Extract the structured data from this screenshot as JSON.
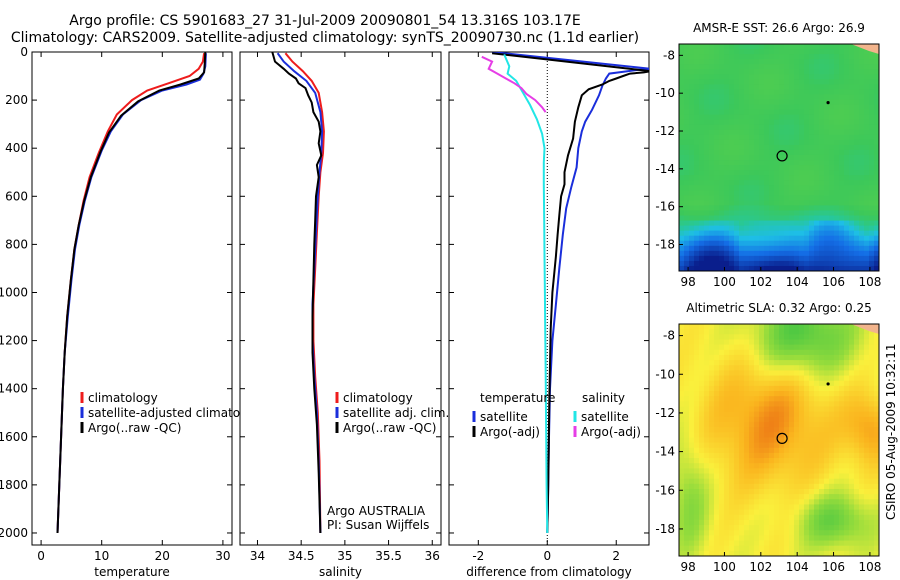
{
  "header": {
    "line1": "Argo profile: CS 5901683_27 31-Jul-2009 20090801_54 13.316S 103.17E",
    "line2": "Climatology: CARS2009. Satellite-adjusted climatology: synTS_20090730.nc (1.1d earlier)"
  },
  "stamp": "CSIRO 05-Aug-2009 10:32:11",
  "colors": {
    "climatology": "#ee1c1c",
    "satellite": "#1a2edb",
    "argo": "#000000",
    "sat_salinity": "#22e6e6",
    "argo_salinity": "#e63ee6",
    "land": "#f2b48c"
  },
  "chart_data": [
    {
      "type": "line",
      "panel": "temperature",
      "xlabel": "temperature",
      "ylabel": "",
      "xlim": [
        -1.5,
        31.5
      ],
      "ylim": [
        2050,
        0
      ],
      "xticks": [
        0,
        10,
        20,
        30
      ],
      "yticks": [
        0,
        200,
        400,
        600,
        800,
        1000,
        1200,
        1400,
        1600,
        1800,
        2000
      ],
      "legend": {
        "location": "lower-center",
        "entries": [
          "climatology",
          "satellite-adjusted climatology",
          "Argo(..raw -QC)"
        ]
      },
      "series": [
        {
          "name": "climatology",
          "color": "#ee1c1c",
          "points": [
            [
              26.9,
              5
            ],
            [
              26.7,
              40
            ],
            [
              26.0,
              70
            ],
            [
              24.5,
              100
            ],
            [
              21.0,
              130
            ],
            [
              17.5,
              160
            ],
            [
              15.0,
              200
            ],
            [
              12.5,
              260
            ],
            [
              11.0,
              330
            ],
            [
              9.5,
              420
            ],
            [
              8.0,
              520
            ],
            [
              7.0,
              620
            ],
            [
              6.2,
              720
            ],
            [
              5.5,
              820
            ],
            [
              4.9,
              950
            ],
            [
              4.3,
              1100
            ],
            [
              3.9,
              1250
            ],
            [
              3.6,
              1400
            ],
            [
              3.3,
              1600
            ],
            [
              3.0,
              1800
            ],
            [
              2.7,
              2000
            ]
          ]
        },
        {
          "name": "satellite-adjusted climatology",
          "color": "#1a2edb",
          "points": [
            [
              27.2,
              5
            ],
            [
              27.1,
              60
            ],
            [
              26.8,
              90
            ],
            [
              26.2,
              115
            ],
            [
              24.0,
              135
            ],
            [
              20.0,
              160
            ],
            [
              16.5,
              200
            ],
            [
              13.5,
              260
            ],
            [
              11.5,
              330
            ],
            [
              10.0,
              410
            ],
            [
              8.3,
              520
            ],
            [
              7.2,
              620
            ],
            [
              6.3,
              720
            ],
            [
              5.6,
              820
            ],
            [
              5.0,
              950
            ],
            [
              4.4,
              1100
            ],
            [
              3.9,
              1250
            ],
            [
              3.6,
              1400
            ],
            [
              3.3,
              1600
            ],
            [
              3.0,
              1800
            ],
            [
              2.7,
              2000
            ]
          ]
        },
        {
          "name": "Argo(..raw -QC)",
          "color": "#000000",
          "points": [
            [
              27.1,
              0
            ],
            [
              27.0,
              50
            ],
            [
              26.9,
              85
            ],
            [
              26.0,
              110
            ],
            [
              23.0,
              135
            ],
            [
              19.5,
              160
            ],
            [
              16.0,
              205
            ],
            [
              13.2,
              265
            ],
            [
              11.2,
              335
            ],
            [
              9.8,
              415
            ],
            [
              8.2,
              520
            ],
            [
              7.1,
              620
            ],
            [
              6.2,
              720
            ],
            [
              5.5,
              820
            ],
            [
              4.9,
              950
            ],
            [
              4.3,
              1100
            ],
            [
              3.9,
              1250
            ],
            [
              3.6,
              1400
            ],
            [
              3.3,
              1600
            ],
            [
              3.0,
              1800
            ],
            [
              2.7,
              2000
            ]
          ]
        }
      ]
    },
    {
      "type": "line",
      "panel": "salinity",
      "xlabel": "salinity",
      "xlim": [
        33.8,
        36.1
      ],
      "ylim": [
        2050,
        0
      ],
      "xticks": [
        34,
        34.5,
        35,
        35.5,
        36
      ],
      "legend": {
        "location": "lower-right",
        "entries": [
          "climatology",
          "satellite adj. clim.",
          "Argo(..raw -QC)"
        ]
      },
      "annotation": [
        "Argo AUSTRALIA",
        "PI: Susan Wijffels"
      ],
      "series": [
        {
          "name": "climatology",
          "color": "#ee1c1c",
          "points": [
            [
              34.32,
              5
            ],
            [
              34.4,
              40
            ],
            [
              34.52,
              80
            ],
            [
              34.62,
              120
            ],
            [
              34.7,
              170
            ],
            [
              34.74,
              250
            ],
            [
              34.76,
              330
            ],
            [
              34.75,
              420
            ],
            [
              34.72,
              500
            ],
            [
              34.7,
              600
            ],
            [
              34.68,
              750
            ],
            [
              34.66,
              900
            ],
            [
              34.64,
              1050
            ],
            [
              34.64,
              1200
            ],
            [
              34.66,
              1350
            ],
            [
              34.69,
              1500
            ],
            [
              34.71,
              1700
            ],
            [
              34.72,
              2000
            ]
          ]
        },
        {
          "name": "satellite adj. clim.",
          "color": "#1a2edb",
          "points": [
            [
              34.23,
              5
            ],
            [
              34.3,
              40
            ],
            [
              34.42,
              80
            ],
            [
              34.56,
              120
            ],
            [
              34.66,
              170
            ],
            [
              34.72,
              250
            ],
            [
              34.74,
              330
            ],
            [
              34.73,
              420
            ],
            [
              34.71,
              500
            ],
            [
              34.69,
              600
            ],
            [
              34.67,
              750
            ],
            [
              34.65,
              900
            ],
            [
              34.63,
              1050
            ],
            [
              34.63,
              1200
            ],
            [
              34.65,
              1350
            ],
            [
              34.68,
              1500
            ],
            [
              34.7,
              1700
            ],
            [
              34.72,
              2000
            ]
          ]
        },
        {
          "name": "Argo(..raw -QC)",
          "color": "#000000",
          "points": [
            [
              34.17,
              0
            ],
            [
              34.2,
              40
            ],
            [
              34.3,
              70
            ],
            [
              34.36,
              90
            ],
            [
              34.44,
              110
            ],
            [
              34.47,
              130
            ],
            [
              34.55,
              150
            ],
            [
              34.58,
              180
            ],
            [
              34.62,
              210
            ],
            [
              34.64,
              250
            ],
            [
              34.7,
              290
            ],
            [
              34.72,
              330
            ],
            [
              34.7,
              380
            ],
            [
              34.73,
              430
            ],
            [
              34.68,
              470
            ],
            [
              34.7,
              520
            ],
            [
              34.67,
              600
            ],
            [
              34.66,
              700
            ],
            [
              34.65,
              800
            ],
            [
              34.64,
              950
            ],
            [
              34.63,
              1100
            ],
            [
              34.63,
              1250
            ],
            [
              34.65,
              1400
            ],
            [
              34.68,
              1550
            ],
            [
              34.7,
              1750
            ],
            [
              34.72,
              2000
            ]
          ]
        }
      ]
    },
    {
      "type": "line",
      "panel": "difference",
      "xlabel": "difference from climatology",
      "xlim": [
        -2.85,
        2.95
      ],
      "ylim": [
        2050,
        0
      ],
      "xticks": [
        -2,
        0,
        2
      ],
      "zero_line": true,
      "legend": {
        "location": "lower-center",
        "columns": [
          {
            "header": "temperature",
            "entries": [
              "satellite",
              "Argo(-adj)"
            ]
          },
          {
            "header": "salinity",
            "entries": [
              "satellite",
              "Argo(-adj)"
            ]
          }
        ]
      },
      "series": [
        {
          "name": "temperature satellite",
          "color": "#1a2edb",
          "points": [
            [
              -1.6,
              0
            ],
            [
              3.0,
              70
            ],
            [
              2.6,
              75
            ],
            [
              1.8,
              90
            ],
            [
              1.7,
              110
            ],
            [
              1.6,
              140
            ],
            [
              1.5,
              180
            ],
            [
              1.3,
              240
            ],
            [
              1.1,
              290
            ],
            [
              1.0,
              330
            ],
            [
              0.9,
              400
            ],
            [
              0.85,
              480
            ],
            [
              0.7,
              560
            ],
            [
              0.55,
              650
            ],
            [
              0.45,
              760
            ],
            [
              0.35,
              900
            ],
            [
              0.25,
              1050
            ],
            [
              0.15,
              1200
            ],
            [
              0.08,
              1400
            ],
            [
              0.05,
              1600
            ],
            [
              0.03,
              1800
            ],
            [
              0.0,
              2000
            ]
          ]
        },
        {
          "name": "temperature Argo(-adj)",
          "color": "#000000",
          "points": [
            [
              -1.6,
              5
            ],
            [
              3.0,
              80
            ],
            [
              2.8,
              85
            ],
            [
              2.4,
              90
            ],
            [
              2.2,
              100
            ],
            [
              2.0,
              110
            ],
            [
              1.8,
              120
            ],
            [
              1.6,
              135
            ],
            [
              1.2,
              155
            ],
            [
              1.0,
              180
            ],
            [
              0.9,
              230
            ],
            [
              0.8,
              290
            ],
            [
              0.75,
              360
            ],
            [
              0.6,
              430
            ],
            [
              0.5,
              500
            ],
            [
              0.5,
              550
            ],
            [
              0.4,
              600
            ],
            [
              0.35,
              680
            ],
            [
              0.3,
              760
            ],
            [
              0.25,
              850
            ],
            [
              0.15,
              1000
            ],
            [
              0.1,
              1150
            ],
            [
              0.08,
              1300
            ],
            [
              0.06,
              1450
            ],
            [
              0.04,
              1650
            ],
            [
              0.02,
              1850
            ],
            [
              0.0,
              2000
            ]
          ]
        },
        {
          "name": "salinity satellite",
          "color": "#22e6e6",
          "points": [
            [
              -1.25,
              10
            ],
            [
              -1.1,
              60
            ],
            [
              -1.15,
              90
            ],
            [
              -0.9,
              120
            ],
            [
              -0.7,
              170
            ],
            [
              -0.5,
              220
            ],
            [
              -0.3,
              280
            ],
            [
              -0.15,
              340
            ],
            [
              -0.08,
              400
            ],
            [
              -0.1,
              460
            ],
            [
              -0.1,
              550
            ],
            [
              -0.09,
              700
            ],
            [
              -0.08,
              850
            ],
            [
              -0.07,
              1000
            ],
            [
              -0.06,
              1150
            ],
            [
              -0.05,
              1300
            ],
            [
              -0.04,
              1450
            ],
            [
              -0.03,
              1600
            ],
            [
              -0.02,
              1800
            ],
            [
              0.0,
              2000
            ]
          ]
        },
        {
          "name": "salinity Argo(-adj)",
          "color": "#e63ee6",
          "points": [
            [
              -1.9,
              20
            ],
            [
              -1.6,
              40
            ],
            [
              -1.7,
              70
            ],
            [
              -1.45,
              90
            ],
            [
              -1.2,
              110
            ],
            [
              -0.95,
              130
            ],
            [
              -0.75,
              150
            ],
            [
              -0.6,
              175
            ],
            [
              -0.35,
              200
            ],
            [
              -0.15,
              230
            ],
            [
              -0.05,
              250
            ]
          ]
        }
      ]
    }
  ],
  "maps": [
    {
      "title": "AMSR-E SST: 26.6 Argo: 26.9",
      "xticks": [
        98,
        100,
        102,
        104,
        106,
        108
      ],
      "yticks": [
        -8,
        -10,
        -12,
        -14,
        -16,
        -18
      ],
      "xlim": [
        97.5,
        108.5
      ],
      "ylim": [
        -19.4,
        -7.4
      ],
      "profile_marker": {
        "lon": 103.17,
        "lat": -13.316
      },
      "prev_position": {
        "lon": 105.7,
        "lat": -10.5
      }
    },
    {
      "title": "Altimetric SLA: 0.32 Argo: 0.25",
      "xticks": [
        98,
        100,
        102,
        104,
        106,
        108
      ],
      "yticks": [
        -8,
        -10,
        -12,
        -14,
        -16,
        -18
      ],
      "xlim": [
        97.5,
        108.5
      ],
      "ylim": [
        -19.4,
        -7.4
      ],
      "profile_marker": {
        "lon": 103.17,
        "lat": -13.316
      },
      "prev_position": {
        "lon": 105.7,
        "lat": -10.5
      }
    }
  ]
}
